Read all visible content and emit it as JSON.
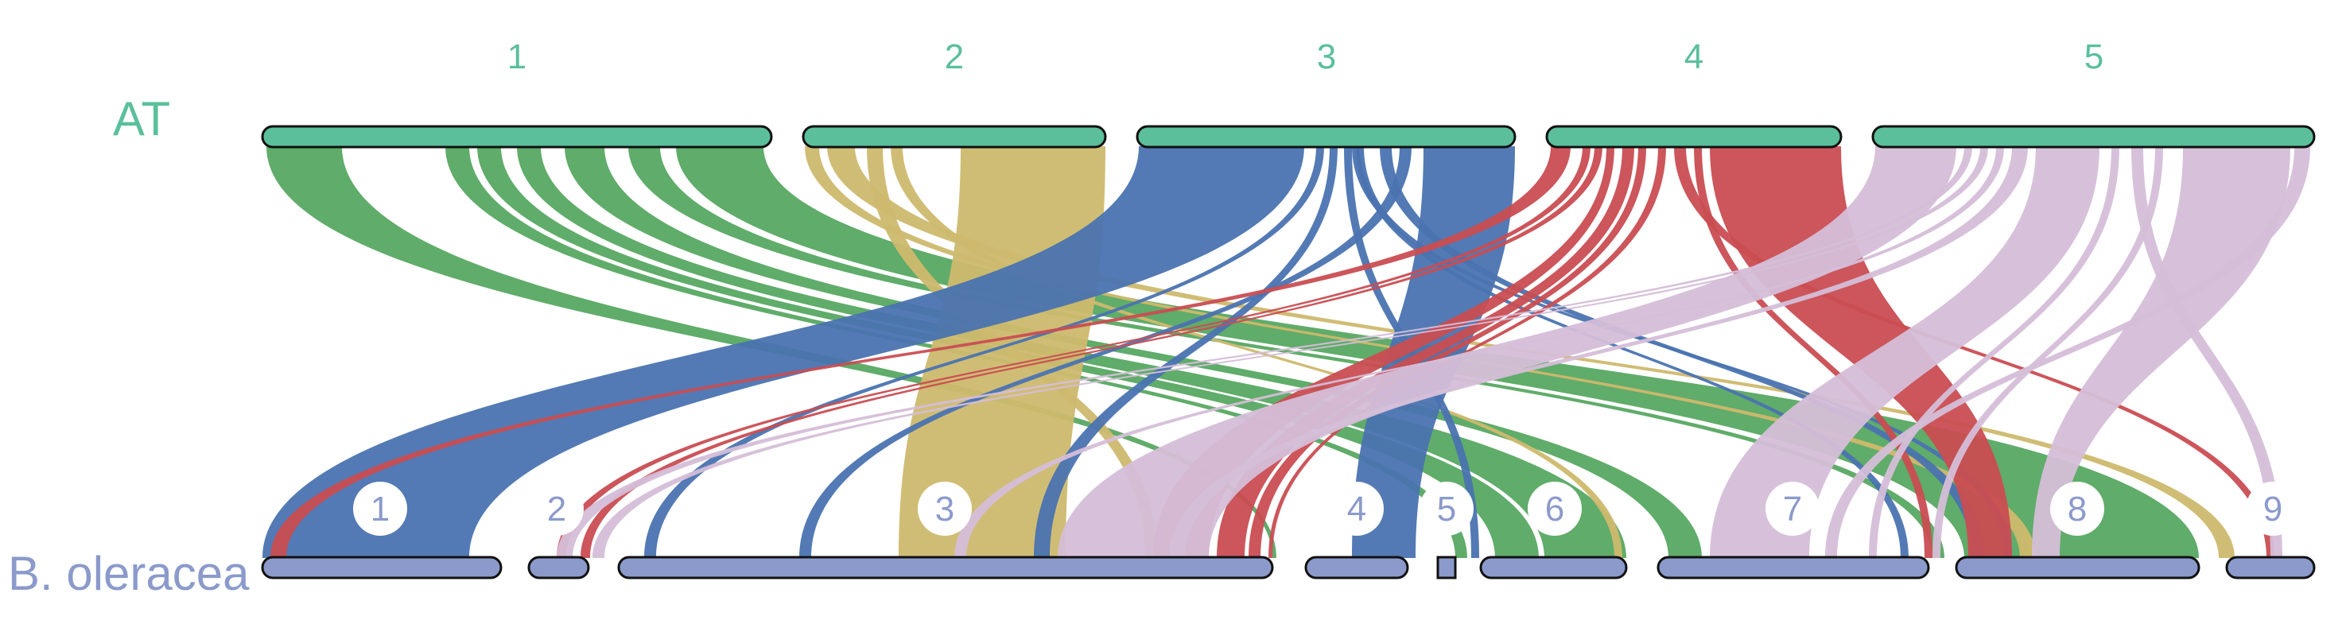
{
  "genomes": {
    "top": {
      "name": "AT",
      "color": "#5bbf9c"
    },
    "bottom": {
      "name": "B. oleracea",
      "color": "#8b9acb"
    }
  },
  "top_chromosomes": [
    {
      "id": "1",
      "label": "1"
    },
    {
      "id": "2",
      "label": "2"
    },
    {
      "id": "3",
      "label": "3"
    },
    {
      "id": "4",
      "label": "4"
    },
    {
      "id": "5",
      "label": "5"
    }
  ],
  "bottom_chromosomes": [
    {
      "id": "1",
      "label": "1"
    },
    {
      "id": "2",
      "label": "2"
    },
    {
      "id": "3",
      "label": "3"
    },
    {
      "id": "4",
      "label": "4"
    },
    {
      "id": "5",
      "label": "5"
    },
    {
      "id": "6",
      "label": "6"
    },
    {
      "id": "7",
      "label": "7"
    },
    {
      "id": "8",
      "label": "8"
    },
    {
      "id": "9",
      "label": "9"
    }
  ],
  "ribbon_colors": {
    "1": "#57a862",
    "2": "#cdb96e",
    "3": "#4a73b0",
    "4": "#c94d52",
    "5": "#d5bed8"
  }
}
